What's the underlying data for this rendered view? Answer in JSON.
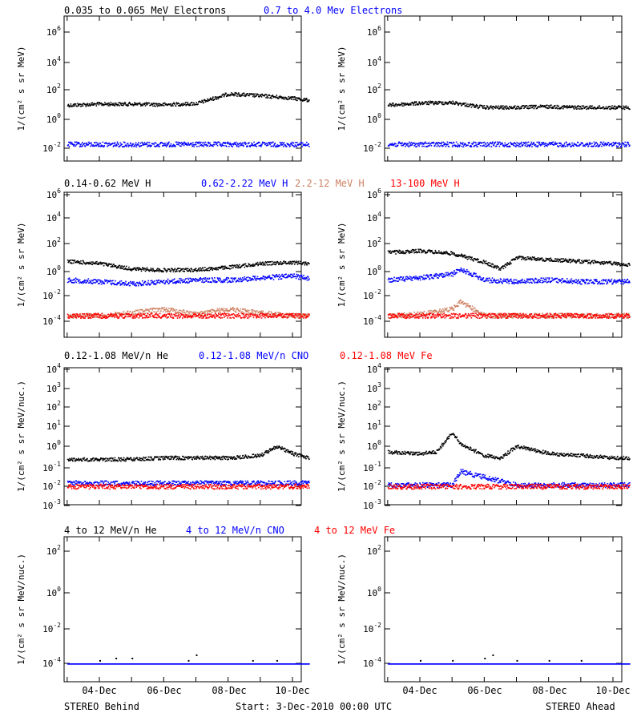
{
  "colors": {
    "black": "#000000",
    "blue": "#0000ff",
    "tan": "#cd8162",
    "red": "#ff0000"
  },
  "rows": [
    {
      "legend": [
        {
          "text": "0.035 to 0.065 MeV Electrons",
          "color": "#000000"
        },
        {
          "text": "0.7 to 4.0 Mev Electrons",
          "color": "#0000ff"
        }
      ],
      "ylabel": "1/(cm² s sr MeV)",
      "ticks": [
        {
          "exp": "6",
          "value": 1000000
        },
        {
          "exp": "4",
          "value": 10000
        },
        {
          "exp": "2",
          "value": 100
        },
        {
          "exp": "0",
          "value": 1
        },
        {
          "exp": "-2",
          "value": 0.01
        }
      ]
    },
    {
      "legend": [
        {
          "text": "0.14-0.62 MeV H",
          "color": "#000000"
        },
        {
          "text": "0.62-2.22 MeV H",
          "color": "#0000ff"
        },
        {
          "text": "2.2-12 MeV H",
          "color": "#cd8162"
        },
        {
          "text": "13-100 MeV H",
          "color": "#ff0000"
        }
      ],
      "ylabel": "1/(cm² s sr MeV)",
      "ticks": [
        {
          "exp": "6",
          "value": 1000000
        },
        {
          "exp": "4",
          "value": 10000
        },
        {
          "exp": "2",
          "value": 100
        },
        {
          "exp": "0",
          "value": 1
        },
        {
          "exp": "-2",
          "value": 0.01
        },
        {
          "exp": "-4",
          "value": 0.0001
        }
      ]
    },
    {
      "legend": [
        {
          "text": "0.12-1.08 MeV/n He",
          "color": "#000000"
        },
        {
          "text": "0.12-1.08 MeV/n CNO",
          "color": "#0000ff"
        },
        {
          "text": "0.12-1.08 MeV Fe",
          "color": "#ff0000"
        }
      ],
      "ylabel": "1/(cm² s sr MeV/nuc.)",
      "ticks": [
        {
          "exp": "4",
          "value": 10000
        },
        {
          "exp": "3",
          "value": 1000
        },
        {
          "exp": "2",
          "value": 100
        },
        {
          "exp": "1",
          "value": 10
        },
        {
          "exp": "0",
          "value": 1
        },
        {
          "exp": "-1",
          "value": 0.1
        },
        {
          "exp": "-2",
          "value": 0.01
        },
        {
          "exp": "-3",
          "value": 0.001
        }
      ]
    },
    {
      "legend": [
        {
          "text": "4 to 12 MeV/n He",
          "color": "#000000"
        },
        {
          "text": "4 to 12 MeV/n CNO",
          "color": "#0000ff"
        },
        {
          "text": "4 to 12 MeV Fe",
          "color": "#ff0000"
        }
      ],
      "ylabel": "1/(cm² s sr MeV/nuc.)",
      "ticks": [
        {
          "exp": "2",
          "value": 100
        },
        {
          "exp": "0",
          "value": 1
        },
        {
          "exp": "-2",
          "value": 0.01
        },
        {
          "exp": "-4",
          "value": 0.0001
        }
      ]
    }
  ],
  "xticks": [
    "04-Dec",
    "06-Dec",
    "08-Dec",
    "10-Dec"
  ],
  "footer": {
    "left": "STEREO Behind",
    "center": "Start:  3-Dec-2010 00:00 UTC",
    "right": "STEREO Ahead"
  },
  "chart_data": [
    {
      "type": "scatter",
      "panel": "STEREO Behind - Electrons",
      "yscale": "log",
      "ylim": [
        0.001,
        10000000
      ],
      "x_range": [
        "2010-12-03",
        "2010-12-10T12:00"
      ],
      "series": [
        {
          "name": "0.035 to 0.065 MeV Electrons",
          "color": "#000000",
          "x": [
            "2010-12-03",
            "2010-12-04",
            "2010-12-05",
            "2010-12-06",
            "2010-12-07",
            "2010-12-08",
            "2010-12-09",
            "2010-12-10",
            "2010-12-10T12:00"
          ],
          "values": [
            10,
            12,
            12,
            11,
            13,
            60,
            45,
            30,
            22
          ]
        },
        {
          "name": "0.7 to 4.0 Mev Electrons",
          "color": "#0000ff",
          "x": [
            "2010-12-03",
            "2010-12-05",
            "2010-12-07",
            "2010-12-09",
            "2010-12-10T12:00"
          ],
          "values": [
            0.02,
            0.02,
            0.02,
            0.02,
            0.02
          ]
        }
      ]
    },
    {
      "type": "scatter",
      "panel": "STEREO Ahead - Electrons",
      "yscale": "log",
      "ylim": [
        0.001,
        10000000
      ],
      "x_range": [
        "2010-12-03",
        "2010-12-10T12:00"
      ],
      "series": [
        {
          "name": "0.035 to 0.065 MeV Electrons",
          "color": "#000000",
          "x": [
            "2010-12-03",
            "2010-12-04",
            "2010-12-05",
            "2010-12-06",
            "2010-12-07",
            "2010-12-08",
            "2010-12-09",
            "2010-12-10",
            "2010-12-10T12:00"
          ],
          "values": [
            10,
            14,
            15,
            7,
            7,
            8,
            7,
            7,
            7
          ]
        },
        {
          "name": "0.7 to 4.0 Mev Electrons",
          "color": "#0000ff",
          "x": [
            "2010-12-03",
            "2010-12-05",
            "2010-12-07",
            "2010-12-09",
            "2010-12-10T12:00"
          ],
          "values": [
            0.02,
            0.02,
            0.02,
            0.02,
            0.02
          ]
        }
      ]
    },
    {
      "type": "scatter",
      "panel": "STEREO Behind - Protons",
      "yscale": "log",
      "ylim": [
        1e-05,
        1000000
      ],
      "x_range": [
        "2010-12-03",
        "2010-12-10T12:00"
      ],
      "series": [
        {
          "name": "0.14-0.62 MeV H",
          "color": "#000000",
          "x": [
            "2010-12-03",
            "2010-12-04",
            "2010-12-05",
            "2010-12-06",
            "2010-12-07",
            "2010-12-08",
            "2010-12-09",
            "2010-12-10",
            "2010-12-10T12:00"
          ],
          "values": [
            6,
            4,
            1.5,
            1.2,
            1.3,
            2,
            4,
            5,
            4
          ]
        },
        {
          "name": "0.62-2.22 MeV H",
          "color": "#0000ff",
          "x": [
            "2010-12-03",
            "2010-12-04",
            "2010-12-05",
            "2010-12-06",
            "2010-12-07",
            "2010-12-08",
            "2010-12-09",
            "2010-12-10",
            "2010-12-10T12:00"
          ],
          "values": [
            0.2,
            0.15,
            0.1,
            0.15,
            0.2,
            0.2,
            0.3,
            0.4,
            0.3
          ]
        },
        {
          "name": "2.2-12 MeV H",
          "color": "#cd8162",
          "x": [
            "2010-12-03",
            "2010-12-04",
            "2010-12-05",
            "2010-12-06",
            "2010-12-07",
            "2010-12-08",
            "2010-12-09",
            "2010-12-10",
            "2010-12-10T12:00"
          ],
          "values": [
            0.0003,
            0.0003,
            0.0005,
            0.001,
            0.0004,
            0.001,
            0.0005,
            0.0003,
            0.0003
          ]
        },
        {
          "name": "13-100 MeV H",
          "color": "#ff0000",
          "x": [
            "2010-12-03",
            "2010-12-05",
            "2010-12-07",
            "2010-12-09",
            "2010-12-10T12:00"
          ],
          "values": [
            0.0003,
            0.0003,
            0.0003,
            0.0003,
            0.0003
          ]
        }
      ]
    },
    {
      "type": "scatter",
      "panel": "STEREO Ahead - Protons",
      "yscale": "log",
      "ylim": [
        1e-05,
        1000000
      ],
      "x_range": [
        "2010-12-03",
        "2010-12-10T12:00"
      ],
      "series": [
        {
          "name": "0.14-0.62 MeV H",
          "color": "#000000",
          "x": [
            "2010-12-03",
            "2010-12-04",
            "2010-12-05",
            "2010-12-06",
            "2010-12-06T12:00",
            "2010-12-07",
            "2010-12-08",
            "2010-12-09",
            "2010-12-10",
            "2010-12-10T12:00"
          ],
          "values": [
            30,
            40,
            25,
            5,
            1.5,
            12,
            8,
            6,
            4,
            3
          ]
        },
        {
          "name": "0.62-2.22 MeV H",
          "color": "#0000ff",
          "x": [
            "2010-12-03",
            "2010-12-04",
            "2010-12-05",
            "2010-12-05T06:00",
            "2010-12-06",
            "2010-12-07",
            "2010-12-08",
            "2010-12-09",
            "2010-12-10T12:00"
          ],
          "values": [
            0.2,
            0.3,
            0.6,
            1.5,
            0.2,
            0.15,
            0.2,
            0.15,
            0.15
          ]
        },
        {
          "name": "2.2-12 MeV H",
          "color": "#cd8162",
          "x": [
            "2010-12-03",
            "2010-12-04",
            "2010-12-05",
            "2010-12-05T06:00",
            "2010-12-06",
            "2010-12-08",
            "2010-12-10T12:00"
          ],
          "values": [
            0.0003,
            0.0004,
            0.001,
            0.004,
            0.0003,
            0.0003,
            0.0003
          ]
        },
        {
          "name": "13-100 MeV H",
          "color": "#ff0000",
          "x": [
            "2010-12-03",
            "2010-12-05",
            "2010-12-07",
            "2010-12-09",
            "2010-12-10T12:00"
          ],
          "values": [
            0.0003,
            0.0003,
            0.0003,
            0.0003,
            0.0003
          ]
        }
      ]
    },
    {
      "type": "scatter",
      "panel": "STEREO Behind - Low-energy heavy ions",
      "yscale": "log",
      "ylim": [
        0.001,
        10000
      ],
      "x_range": [
        "2010-12-03",
        "2010-12-10T12:00"
      ],
      "series": [
        {
          "name": "0.12-1.08 MeV/n He",
          "color": "#000000",
          "x": [
            "2010-12-03",
            "2010-12-04",
            "2010-12-05",
            "2010-12-06",
            "2010-12-07",
            "2010-12-08",
            "2010-12-09",
            "2010-12-09T12:00",
            "2010-12-10",
            "2010-12-10T12:00"
          ],
          "values": [
            0.25,
            0.25,
            0.25,
            0.3,
            0.3,
            0.3,
            0.4,
            1.2,
            0.5,
            0.3
          ]
        },
        {
          "name": "0.12-1.08 MeV/n CNO",
          "color": "#0000ff",
          "x": [
            "2010-12-03",
            "2010-12-05",
            "2010-12-07",
            "2010-12-09",
            "2010-12-10T12:00"
          ],
          "values": [
            0.015,
            0.015,
            0.015,
            0.015,
            0.015
          ]
        },
        {
          "name": "0.12-1.08 MeV Fe",
          "color": "#ff0000",
          "x": [
            "2010-12-03",
            "2010-12-05",
            "2010-12-07",
            "2010-12-09",
            "2010-12-10T12:00"
          ],
          "values": [
            0.01,
            0.01,
            0.01,
            0.01,
            0.01
          ]
        }
      ]
    },
    {
      "type": "scatter",
      "panel": "STEREO Ahead - Low-energy heavy ions",
      "yscale": "log",
      "ylim": [
        0.001,
        10000
      ],
      "x_range": [
        "2010-12-03",
        "2010-12-10T12:00"
      ],
      "series": [
        {
          "name": "0.12-1.08 MeV/n He",
          "color": "#000000",
          "x": [
            "2010-12-03",
            "2010-12-04",
            "2010-12-04T12:00",
            "2010-12-05",
            "2010-12-05T06:00",
            "2010-12-06",
            "2010-12-06T12:00",
            "2010-12-07",
            "2010-12-08",
            "2010-12-09",
            "2010-12-10",
            "2010-12-10T12:00"
          ],
          "values": [
            0.6,
            0.5,
            0.6,
            6,
            1.5,
            0.4,
            0.3,
            1.2,
            0.5,
            0.4,
            0.3,
            0.3
          ]
        },
        {
          "name": "0.12-1.08 MeV/n CNO",
          "color": "#0000ff",
          "x": [
            "2010-12-03",
            "2010-12-05",
            "2010-12-05T06:00",
            "2010-12-07",
            "2010-12-10T12:00"
          ],
          "values": [
            0.012,
            0.012,
            0.06,
            0.012,
            0.012
          ]
        },
        {
          "name": "0.12-1.08 MeV Fe",
          "color": "#ff0000",
          "x": [
            "2010-12-03",
            "2010-12-05",
            "2010-12-07",
            "2010-12-09",
            "2010-12-10T12:00"
          ],
          "values": [
            0.01,
            0.01,
            0.01,
            0.01,
            0.01
          ]
        }
      ]
    },
    {
      "type": "scatter",
      "panel": "STEREO Behind - High-energy heavy ions",
      "yscale": "log",
      "ylim": [
        1e-06,
        10000
      ],
      "x_range": [
        "2010-12-03",
        "2010-12-10T12:00"
      ],
      "series": [
        {
          "name": "4 to 12 MeV/n He",
          "color": "#000000",
          "x": [
            "2010-12-04",
            "2010-12-04T12:00",
            "2010-12-05",
            "2010-12-06T18:00",
            "2010-12-07",
            "2010-12-08T18:00",
            "2010-12-09T12:00"
          ],
          "values": [
            0.00015,
            0.0002,
            0.0002,
            0.00015,
            0.0003,
            0.00015,
            0.00015
          ]
        },
        {
          "name": "4 to 12 MeV/n CNO",
          "color": "#0000ff",
          "x": [
            "2010-12-03",
            "2010-12-05",
            "2010-12-07",
            "2010-12-09",
            "2010-12-10T12:00"
          ],
          "values": [
            0.0001,
            0.0001,
            0.0001,
            0.0001,
            0.0001
          ]
        }
      ]
    },
    {
      "type": "scatter",
      "panel": "STEREO Ahead - High-energy heavy ions",
      "yscale": "log",
      "ylim": [
        1e-06,
        10000
      ],
      "x_range": [
        "2010-12-03",
        "2010-12-10T12:00"
      ],
      "series": [
        {
          "name": "4 to 12 MeV/n He",
          "color": "#000000",
          "x": [
            "2010-12-04",
            "2010-12-05",
            "2010-12-06",
            "2010-12-06T06:00",
            "2010-12-07",
            "2010-12-08",
            "2010-12-09"
          ],
          "values": [
            0.00015,
            0.00015,
            0.0002,
            0.0003,
            0.00015,
            0.00015,
            0.00015
          ]
        },
        {
          "name": "4 to 12 MeV/n CNO",
          "color": "#0000ff",
          "x": [
            "2010-12-03",
            "2010-12-05",
            "2010-12-07",
            "2010-12-09",
            "2010-12-10T12:00"
          ],
          "values": [
            0.0001,
            0.0001,
            0.0001,
            0.0001,
            0.0001
          ]
        }
      ]
    }
  ]
}
